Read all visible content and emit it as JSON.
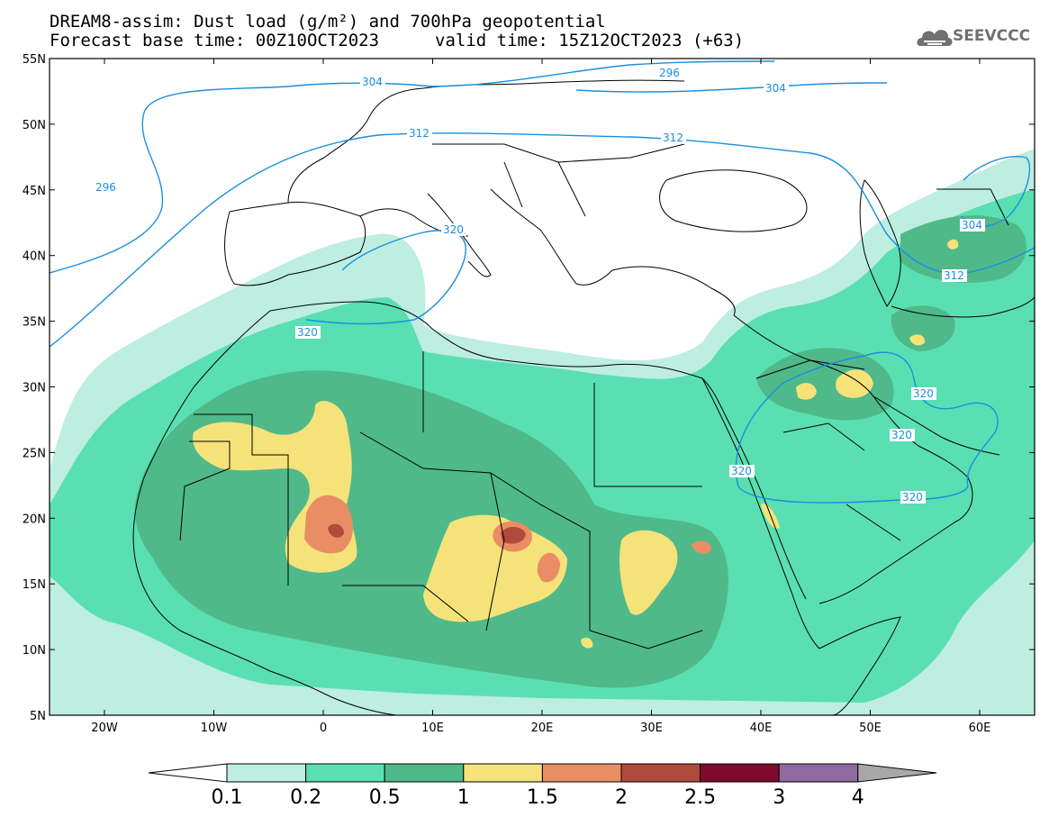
{
  "header": {
    "title_line1": "DREAM8-assim: Dust load (g/m²) and 700hPa geopotential",
    "title_line2": "Forecast base time: 00Z10OCT2023",
    "valid_time": "valid time: 15Z12OCT2023 (+63)",
    "logo_text": "SEEVCCC"
  },
  "map": {
    "lon_labels": [
      "20W",
      "10W",
      "0",
      "10E",
      "20E",
      "30E",
      "40E",
      "50E",
      "60E"
    ],
    "lat_labels": [
      "55N",
      "50N",
      "45N",
      "40N",
      "35N",
      "30N",
      "25N",
      "20N",
      "15N",
      "10N",
      "5N"
    ],
    "isolines": [
      {
        "label": "296"
      },
      {
        "label": "296"
      },
      {
        "label": "304"
      },
      {
        "label": "304"
      },
      {
        "label": "304"
      },
      {
        "label": "312"
      },
      {
        "label": "312"
      },
      {
        "label": "312"
      },
      {
        "label": "320"
      },
      {
        "label": "320"
      },
      {
        "label": "320"
      },
      {
        "label": "320"
      },
      {
        "label": "320"
      },
      {
        "label": "320"
      }
    ]
  },
  "colorbar": {
    "labels": [
      "0.1",
      "0.2",
      "0.5",
      "1",
      "1.5",
      "2",
      "2.5",
      "3",
      "4"
    ],
    "colors": [
      "#ffffff",
      "#bdeee0",
      "#5adfb2",
      "#4fb98a",
      "#f5e37a",
      "#e98d64",
      "#b04a3b",
      "#7d0a2e",
      "#8f6aa0",
      "#a8a8a8"
    ]
  },
  "colors": {
    "land_lines": "#000000",
    "isoline": "#1a8fe0",
    "c01": "#bdeee0",
    "c02": "#5adfb2",
    "c05": "#4fb98a",
    "c1": "#f5e37a",
    "c15": "#e98d64",
    "c2": "#b04a3b"
  }
}
